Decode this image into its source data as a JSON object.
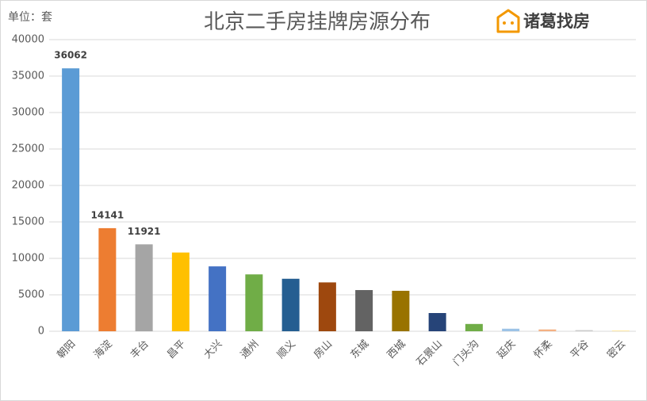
{
  "chart_data": {
    "type": "bar",
    "title": "北京二手房挂牌房源分布",
    "unit_label": "单位：套",
    "logo": "诸葛找房",
    "categories": [
      "朝阳",
      "海淀",
      "丰台",
      "昌平",
      "大兴",
      "通州",
      "顺义",
      "房山",
      "东城",
      "西城",
      "石景山",
      "门头沟",
      "延庆",
      "怀柔",
      "平谷",
      "密云"
    ],
    "values": [
      36062,
      14141,
      11921,
      10800,
      8900,
      7800,
      7200,
      6700,
      5650,
      5550,
      2500,
      1000,
      350,
      250,
      150,
      100
    ],
    "value_labels": [
      "36062",
      "14141",
      "11921",
      null,
      null,
      null,
      null,
      null,
      null,
      null,
      null,
      null,
      null,
      null,
      null,
      null
    ],
    "colors": [
      "#5b9bd5",
      "#ed7d31",
      "#a5a5a5",
      "#ffc000",
      "#4472c4",
      "#70ad47",
      "#255e91",
      "#9e480e",
      "#636363",
      "#997300",
      "#264478",
      "#70ad47",
      "#9dc3e6",
      "#f4b183",
      "#c9c9c9",
      "#ffe699"
    ],
    "ylim": [
      0,
      40000
    ],
    "yticks": [
      0,
      5000,
      10000,
      15000,
      20000,
      25000,
      30000,
      35000,
      40000
    ],
    "grid": true
  }
}
